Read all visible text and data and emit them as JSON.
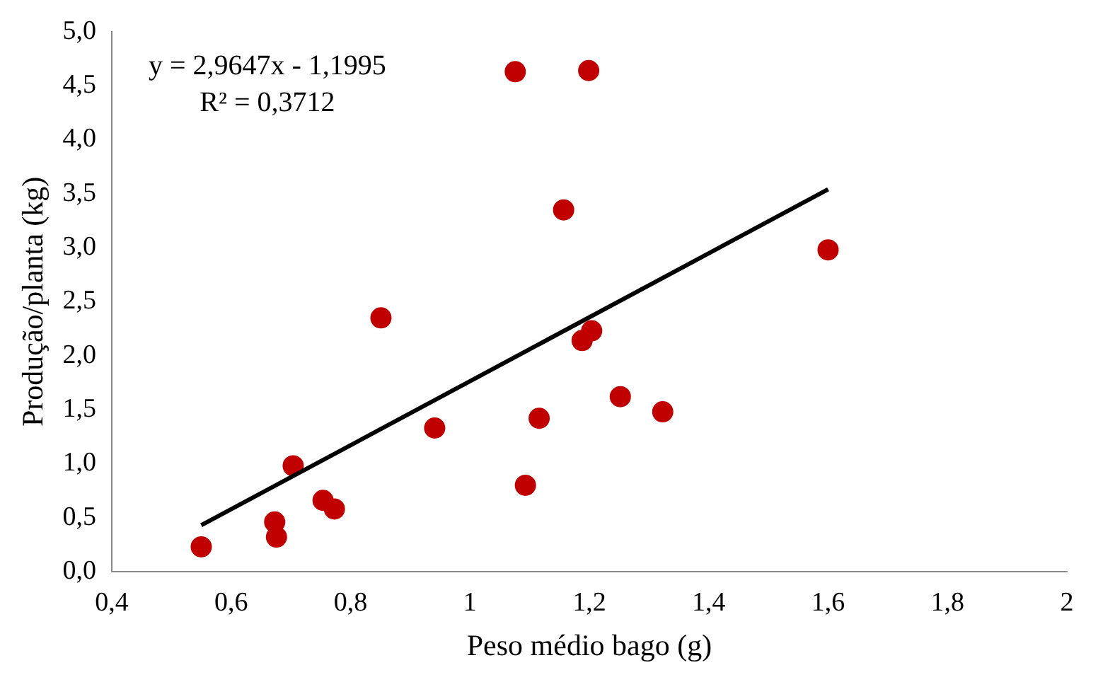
{
  "chart_data": {
    "type": "scatter",
    "xlabel": "Peso médio bago (g)",
    "ylabel": "Produção/planta (kg)",
    "annotations": [
      "y = 2,9647x - 1,1995",
      "R² = 0,3712"
    ],
    "series": [
      {
        "color": "#c00000",
        "marker": "circle",
        "x": [
          0.55,
          0.673,
          0.676,
          0.704,
          0.754,
          0.773,
          0.851,
          0.941,
          1.076,
          1.093,
          1.116,
          1.157,
          1.188,
          1.199,
          1.204,
          1.252,
          1.323,
          1.6
        ],
        "values": [
          0.23,
          0.46,
          0.32,
          0.98,
          0.66,
          0.58,
          2.35,
          1.33,
          4.63,
          0.8,
          1.42,
          3.35,
          2.14,
          4.64,
          2.23,
          1.62,
          1.48,
          2.98
        ]
      },
      {
        "type": "line",
        "color": "#000000",
        "x": [
          0.55,
          1.6
        ],
        "values": [
          0.43,
          3.54
        ]
      }
    ],
    "xlim": [
      0.4,
      2
    ],
    "xticks": [
      {
        "value": 0.4,
        "label": "0,4"
      },
      {
        "value": 0.6,
        "label": "0,6"
      },
      {
        "value": 0.8,
        "label": "0,8"
      },
      1,
      {
        "value": 1.2,
        "label": "1,2"
      },
      {
        "value": 1.4,
        "label": "1,4"
      },
      {
        "value": 1.6,
        "label": "1,6"
      },
      {
        "value": 1.8,
        "label": "1,8"
      },
      2
    ],
    "ylim": [
      0,
      5
    ],
    "yticks": [
      {
        "value": 0,
        "label": "0,0"
      },
      {
        "value": 0.5,
        "label": "0,5"
      },
      {
        "value": 1,
        "label": "1,0"
      },
      {
        "value": 1.5,
        "label": "1,5"
      },
      {
        "value": 2,
        "label": "2,0"
      },
      {
        "value": 2.5,
        "label": "2,5"
      },
      {
        "value": 3,
        "label": "3,0"
      },
      {
        "value": 3.5,
        "label": "3,5"
      },
      {
        "value": 4,
        "label": "4,0"
      },
      {
        "value": 4.5,
        "label": "4,5"
      },
      {
        "value": 5,
        "label": "5,0"
      }
    ],
    "grid": false,
    "legend": false
  }
}
